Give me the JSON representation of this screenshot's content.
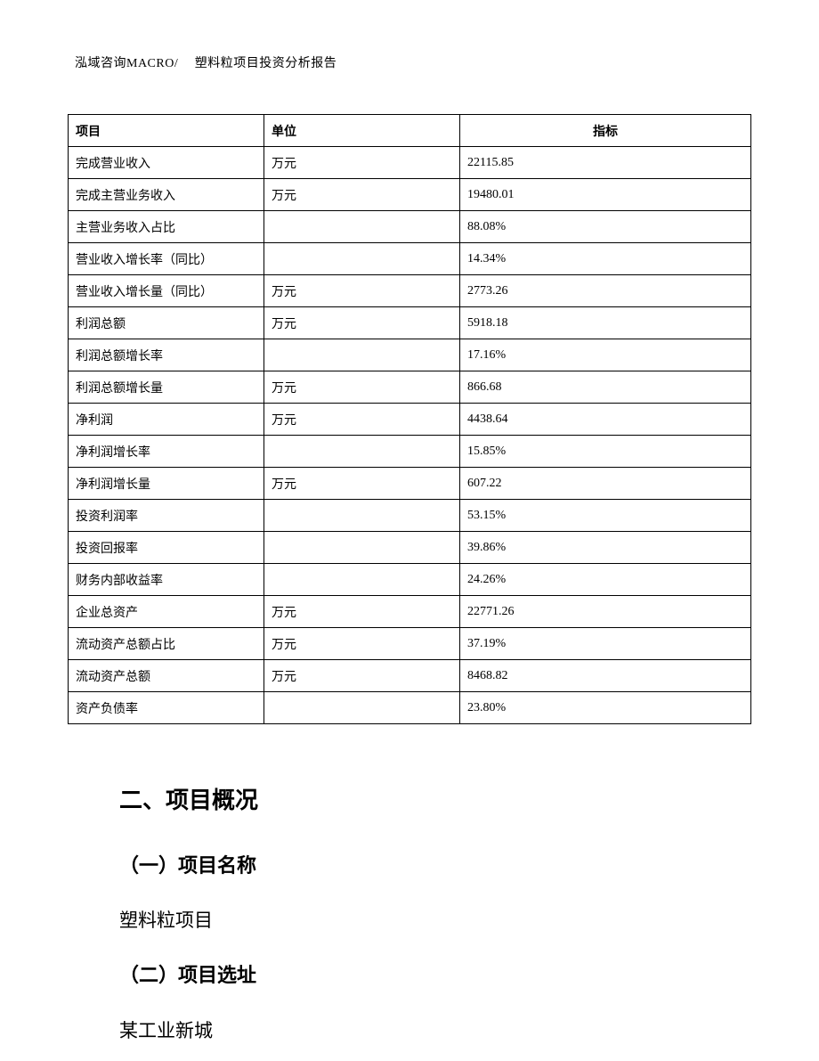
{
  "header": "泓域咨询MACRO/　 塑料粒项目投资分析报告",
  "table": {
    "columns": [
      "项目",
      "单位",
      "指标"
    ],
    "rows": [
      [
        "完成营业收入",
        "万元",
        "22115.85"
      ],
      [
        "完成主营业务收入",
        "万元",
        "19480.01"
      ],
      [
        "主营业务收入占比",
        "",
        "88.08%"
      ],
      [
        "营业收入增长率（同比）",
        "",
        "14.34%"
      ],
      [
        "营业收入增长量（同比）",
        "万元",
        "2773.26"
      ],
      [
        "利润总额",
        "万元",
        "5918.18"
      ],
      [
        "利润总额增长率",
        "",
        "17.16%"
      ],
      [
        "利润总额增长量",
        "万元",
        "866.68"
      ],
      [
        "净利润",
        "万元",
        "4438.64"
      ],
      [
        "净利润增长率",
        "",
        "15.85%"
      ],
      [
        "净利润增长量",
        "万元",
        "607.22"
      ],
      [
        "投资利润率",
        "",
        "53.15%"
      ],
      [
        "投资回报率",
        "",
        "39.86%"
      ],
      [
        "财务内部收益率",
        "",
        "24.26%"
      ],
      [
        "企业总资产",
        "万元",
        "22771.26"
      ],
      [
        "流动资产总额占比",
        "万元",
        "37.19%"
      ],
      [
        "流动资产总额",
        "万元",
        "8468.82"
      ],
      [
        "资产负债率",
        "",
        "23.80%"
      ]
    ]
  },
  "sections": {
    "h2": "二、项目概况",
    "sub1_heading": "（一）项目名称",
    "sub1_text": "塑料粒项目",
    "sub2_heading": "（二）项目选址",
    "sub2_text": "某工业新城"
  }
}
